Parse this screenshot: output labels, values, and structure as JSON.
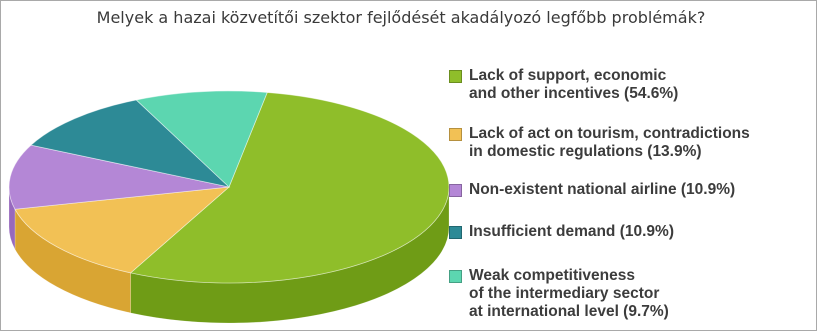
{
  "chart_data": {
    "type": "pie",
    "title": "Melyek a hazai közvetítői szektor fejlődését akadályozó legfőbb problémák?",
    "legend_position": "right",
    "unit": "%",
    "slices": [
      {
        "label": "Lack of support, economic\nand other incentives (54.6%)",
        "value": 54.6,
        "color": "#8fbe2a",
        "side_color": "#6f9c16"
      },
      {
        "label": "Lack of act on tourism, contradictions\nin domestic regulations (13.9%)",
        "value": 13.9,
        "color": "#f2c155",
        "side_color": "#d9a533"
      },
      {
        "label": "Non-existent national airline (10.9%)",
        "value": 10.9,
        "color": "#b487d6",
        "side_color": "#9769bd"
      },
      {
        "label": "Insufficient demand (10.9%)",
        "value": 10.9,
        "color": "#2d8a96",
        "side_color": "#1f6e78"
      },
      {
        "label": "Weak competitiveness\nof the intermediary sector\n at international level (9.7%)",
        "value": 9.7,
        "color": "#5cd6b0",
        "side_color": "#3fb894"
      }
    ]
  }
}
